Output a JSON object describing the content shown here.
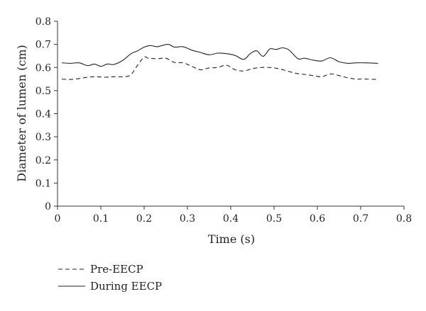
{
  "chart_data": {
    "type": "line",
    "title": "",
    "xlabel": "Time (s)",
    "ylabel": "Diameter of lumen (cm)",
    "xlim": [
      0,
      0.8
    ],
    "ylim": [
      0,
      0.8
    ],
    "x_ticks": [
      "0",
      "0.1",
      "0.2",
      "0.3",
      "0.4",
      "0.5",
      "0.6",
      "0.7",
      "0.8"
    ],
    "y_ticks": [
      "0",
      "0.1",
      "0.2",
      "0.3",
      "0.4",
      "0.5",
      "0.6",
      "0.7",
      "0.8"
    ],
    "grid": false,
    "legend_position": "bottom-left",
    "series": [
      {
        "name": "Pre-EECP",
        "line_style": "dashed",
        "color": "#222222",
        "x": [
          0.01,
          0.03,
          0.05,
          0.07,
          0.09,
          0.11,
          0.13,
          0.155,
          0.17,
          0.185,
          0.2,
          0.21,
          0.23,
          0.25,
          0.27,
          0.29,
          0.31,
          0.33,
          0.35,
          0.37,
          0.39,
          0.41,
          0.43,
          0.45,
          0.47,
          0.49,
          0.51,
          0.53,
          0.55,
          0.57,
          0.59,
          0.61,
          0.63,
          0.65,
          0.67,
          0.69,
          0.71,
          0.74
        ],
        "y": [
          0.55,
          0.548,
          0.552,
          0.558,
          0.56,
          0.558,
          0.56,
          0.56,
          0.57,
          0.61,
          0.645,
          0.64,
          0.638,
          0.64,
          0.622,
          0.62,
          0.605,
          0.59,
          0.598,
          0.6,
          0.61,
          0.59,
          0.585,
          0.595,
          0.6,
          0.6,
          0.595,
          0.585,
          0.575,
          0.57,
          0.565,
          0.56,
          0.572,
          0.565,
          0.555,
          0.55,
          0.55,
          0.548
        ]
      },
      {
        "name": "During EECP",
        "line_style": "solid",
        "color": "#222222",
        "x": [
          0.01,
          0.03,
          0.05,
          0.07,
          0.085,
          0.1,
          0.115,
          0.13,
          0.15,
          0.17,
          0.185,
          0.2,
          0.215,
          0.23,
          0.255,
          0.27,
          0.29,
          0.31,
          0.33,
          0.35,
          0.37,
          0.39,
          0.41,
          0.43,
          0.445,
          0.46,
          0.475,
          0.49,
          0.505,
          0.52,
          0.535,
          0.555,
          0.57,
          0.59,
          0.61,
          0.63,
          0.65,
          0.67,
          0.69,
          0.71,
          0.74
        ],
        "y": [
          0.62,
          0.618,
          0.62,
          0.608,
          0.615,
          0.605,
          0.615,
          0.613,
          0.63,
          0.66,
          0.672,
          0.688,
          0.695,
          0.69,
          0.7,
          0.688,
          0.69,
          0.675,
          0.665,
          0.655,
          0.662,
          0.66,
          0.652,
          0.635,
          0.66,
          0.672,
          0.648,
          0.68,
          0.678,
          0.685,
          0.675,
          0.638,
          0.64,
          0.632,
          0.628,
          0.642,
          0.625,
          0.618,
          0.62,
          0.62,
          0.618
        ]
      }
    ]
  }
}
